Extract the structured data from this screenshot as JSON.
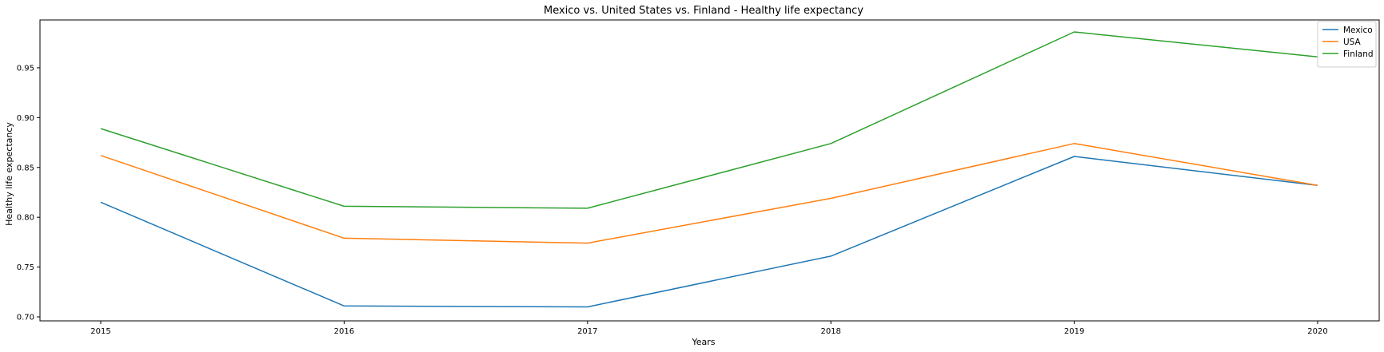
{
  "chart_data": {
    "type": "line",
    "title": "Mexico vs. United States vs. Finland - Healthy life expectancy",
    "xlabel": "Years",
    "ylabel": "Healthy life expectancy",
    "x": [
      "2015",
      "2016",
      "2017",
      "2018",
      "2019",
      "2020"
    ],
    "ylim": [
      0.696,
      0.998
    ],
    "yticks": [
      "0.70",
      "0.75",
      "0.80",
      "0.85",
      "0.90",
      "0.95"
    ],
    "grid": false,
    "legend_position": "top-right",
    "series": [
      {
        "name": "Mexico",
        "color": "#1f77b4",
        "values": [
          0.815,
          0.711,
          0.71,
          0.761,
          0.861,
          0.832
        ]
      },
      {
        "name": "USA",
        "color": "#ff7f0e",
        "values": [
          0.862,
          0.779,
          0.774,
          0.819,
          0.874,
          0.832
        ]
      },
      {
        "name": "Finland",
        "color": "#2ca02c",
        "values": [
          0.889,
          0.811,
          0.809,
          0.874,
          0.986,
          0.961
        ]
      }
    ]
  }
}
